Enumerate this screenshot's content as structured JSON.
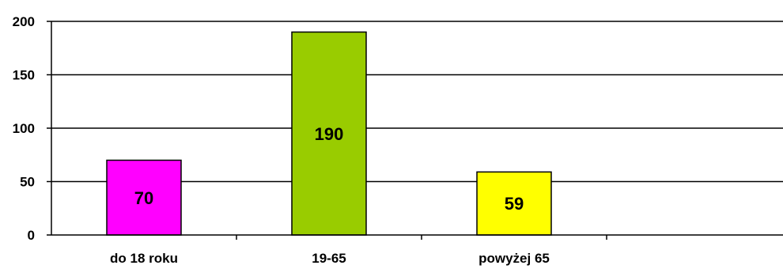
{
  "chart_data": {
    "type": "bar",
    "categories": [
      "do 18 roku",
      "19-65",
      "powyżej 65"
    ],
    "values": [
      70,
      190,
      59
    ],
    "data_labels": [
      "70",
      "190",
      "59"
    ],
    "colors": [
      "#ff00ff",
      "#99cc00",
      "#ffff00"
    ],
    "ylim": [
      0,
      200
    ],
    "yticks": [
      "0",
      "50",
      "100",
      "150",
      "200"
    ],
    "grid": true,
    "legend": "none"
  }
}
